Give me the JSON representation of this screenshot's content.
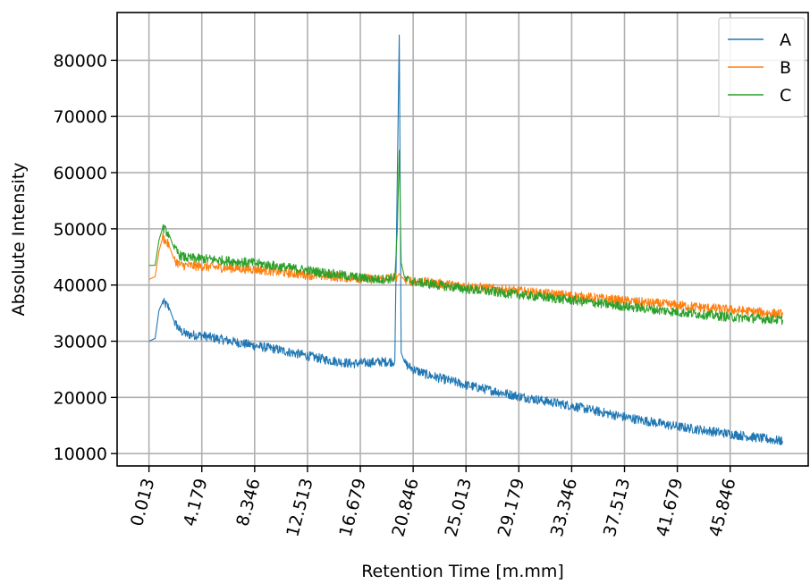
{
  "chart_data": {
    "type": "line",
    "title": "",
    "xlabel": "Retention Time [m.mm]",
    "ylabel": "Absolute Intensity",
    "xlim": [
      -2.5,
      52.0
    ],
    "ylim": [
      7800,
      88500
    ],
    "x_ticks": [
      0.013,
      4.179,
      8.346,
      12.513,
      16.679,
      20.846,
      25.013,
      29.179,
      33.346,
      37.513,
      41.679,
      45.846
    ],
    "x_tick_labels": [
      "0.013",
      "4.179",
      "8.346",
      "12.513",
      "16.679",
      "20.846",
      "25.013",
      "29.179",
      "33.346",
      "37.513",
      "41.679",
      "45.846"
    ],
    "y_ticks": [
      10000,
      20000,
      30000,
      40000,
      50000,
      60000,
      70000,
      80000
    ],
    "y_tick_labels": [
      "10000",
      "20000",
      "30000",
      "40000",
      "50000",
      "60000",
      "70000",
      "80000"
    ],
    "grid": true,
    "legend_position": "top-right",
    "series": [
      {
        "name": "A",
        "color": "#1f77b4",
        "x": [
          0.013,
          0.5,
          0.8,
          1.1,
          1.6,
          2.0,
          2.5,
          3.0,
          4.179,
          6.0,
          8.346,
          10.0,
          11.2,
          12.513,
          14.0,
          16.0,
          16.679,
          18.0,
          19.4,
          19.6,
          19.75,
          19.9,
          20.2,
          20.846,
          22.0,
          25.013,
          29.179,
          33.346,
          37.513,
          41.679,
          45.846,
          50.0
        ],
        "y": [
          30000,
          30500,
          35500,
          37000,
          36000,
          33500,
          31800,
          31200,
          31000,
          30200,
          29200,
          28600,
          28000,
          27400,
          26700,
          26000,
          26100,
          26300,
          26400,
          60000,
          84500,
          28000,
          26000,
          25000,
          24000,
          22200,
          20200,
          18500,
          16500,
          14800,
          13500,
          12200
        ]
      },
      {
        "name": "B",
        "color": "#ff7f0e",
        "x": [
          0.013,
          0.5,
          0.8,
          1.1,
          1.6,
          2.0,
          2.5,
          3.0,
          4.179,
          8.346,
          12.513,
          16.679,
          18.0,
          19.6,
          19.75,
          19.9,
          20.2,
          20.846,
          25.013,
          29.179,
          33.346,
          37.513,
          41.679,
          45.846,
          50.0
        ],
        "y": [
          41000,
          41500,
          46000,
          48500,
          47000,
          44500,
          43500,
          43500,
          43300,
          42800,
          41800,
          41200,
          41000,
          41500,
          42000,
          41500,
          40900,
          40700,
          39800,
          38900,
          38100,
          37200,
          36400,
          35600,
          34800
        ]
      },
      {
        "name": "C",
        "color": "#2ca02c",
        "x": [
          0.013,
          0.5,
          0.8,
          1.1,
          1.6,
          2.0,
          2.5,
          3.0,
          4.179,
          8.346,
          12.513,
          16.679,
          18.0,
          19.4,
          19.6,
          19.75,
          19.9,
          20.2,
          20.846,
          25.013,
          29.179,
          33.346,
          37.513,
          41.679,
          45.846,
          50.0
        ],
        "y": [
          43500,
          43500,
          48000,
          50200,
          49000,
          46500,
          45200,
          44800,
          44700,
          43900,
          42600,
          41300,
          41000,
          41200,
          50000,
          64000,
          44000,
          41000,
          40600,
          39300,
          38300,
          37300,
          36200,
          35200,
          34300,
          33800
        ]
      }
    ]
  }
}
